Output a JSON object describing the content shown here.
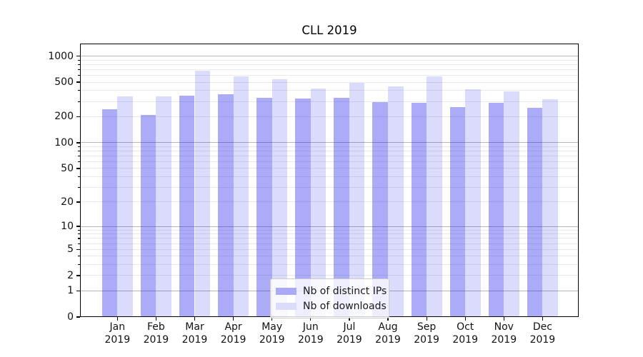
{
  "title": "CLL 2019",
  "chart_data": {
    "type": "bar",
    "title": "CLL 2019",
    "x_months": [
      "Jan",
      "Feb",
      "Mar",
      "Apr",
      "May",
      "Jun",
      "Jul",
      "Aug",
      "Sep",
      "Oct",
      "Nov",
      "Dec"
    ],
    "x_year": "2019",
    "series": [
      {
        "name": "Nb of distinct IPs",
        "values": [
          242,
          210,
          347,
          362,
          328,
          322,
          332,
          293,
          288,
          258,
          289,
          255
        ]
      },
      {
        "name": "Nb of downloads",
        "values": [
          346,
          346,
          675,
          580,
          540,
          420,
          495,
          448,
          585,
          415,
          393,
          317
        ]
      }
    ],
    "y_scale": "log1p",
    "y_ticks": [
      0,
      1,
      2,
      5,
      10,
      20,
      50,
      100,
      200,
      500,
      1000
    ],
    "y_major_gridlines": [
      1,
      10,
      100,
      1000
    ],
    "ylim": [
      0,
      1400
    ],
    "grid": "horizontal major+minor",
    "legend_position": "lower center"
  },
  "colors": {
    "bar_distinct_ips": "rgba(13,13,234,0.35)",
    "bar_downloads": "rgba(13,13,234,0.15)",
    "swatch_distinct_ips": "#aaaaf8",
    "swatch_downloads": "#dbdbfc",
    "grid_major": "#b6b6b6",
    "grid_minor": "#eaeaea",
    "axis": "#000000"
  }
}
